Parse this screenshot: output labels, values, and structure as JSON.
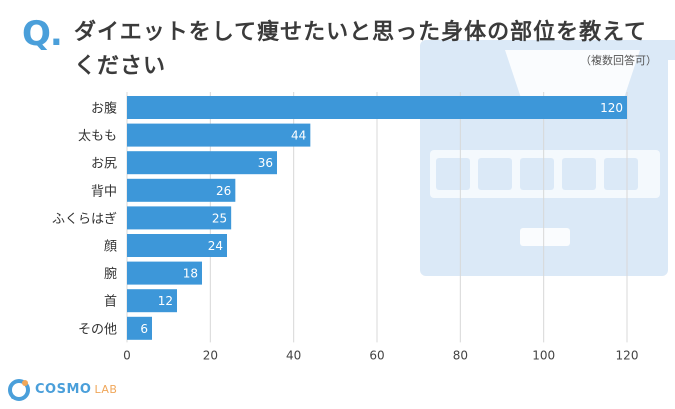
{
  "header": {
    "q_mark": "Q.",
    "title": "ダイエットをして痩せたいと思った身体の部位を教えてください",
    "note": "（複数回答可）"
  },
  "brand": {
    "main": "COSMO",
    "sub": "LAB"
  },
  "colors": {
    "bar": "#3d97d9",
    "accent": "#4a9fda",
    "grid": "#d8d8d8",
    "background_art": "#dbe9f7"
  },
  "chart_data": {
    "type": "bar",
    "orientation": "horizontal",
    "categories": [
      "お腹",
      "太もも",
      "お尻",
      "背中",
      "ふくらはぎ",
      "顔",
      "腕",
      "首",
      "その他"
    ],
    "values": [
      120,
      44,
      36,
      26,
      25,
      24,
      18,
      12,
      6
    ],
    "x_ticks": [
      0,
      20,
      40,
      60,
      80,
      100,
      120
    ],
    "xlim": [
      0,
      120
    ],
    "grid": true,
    "data_labels": true
  }
}
